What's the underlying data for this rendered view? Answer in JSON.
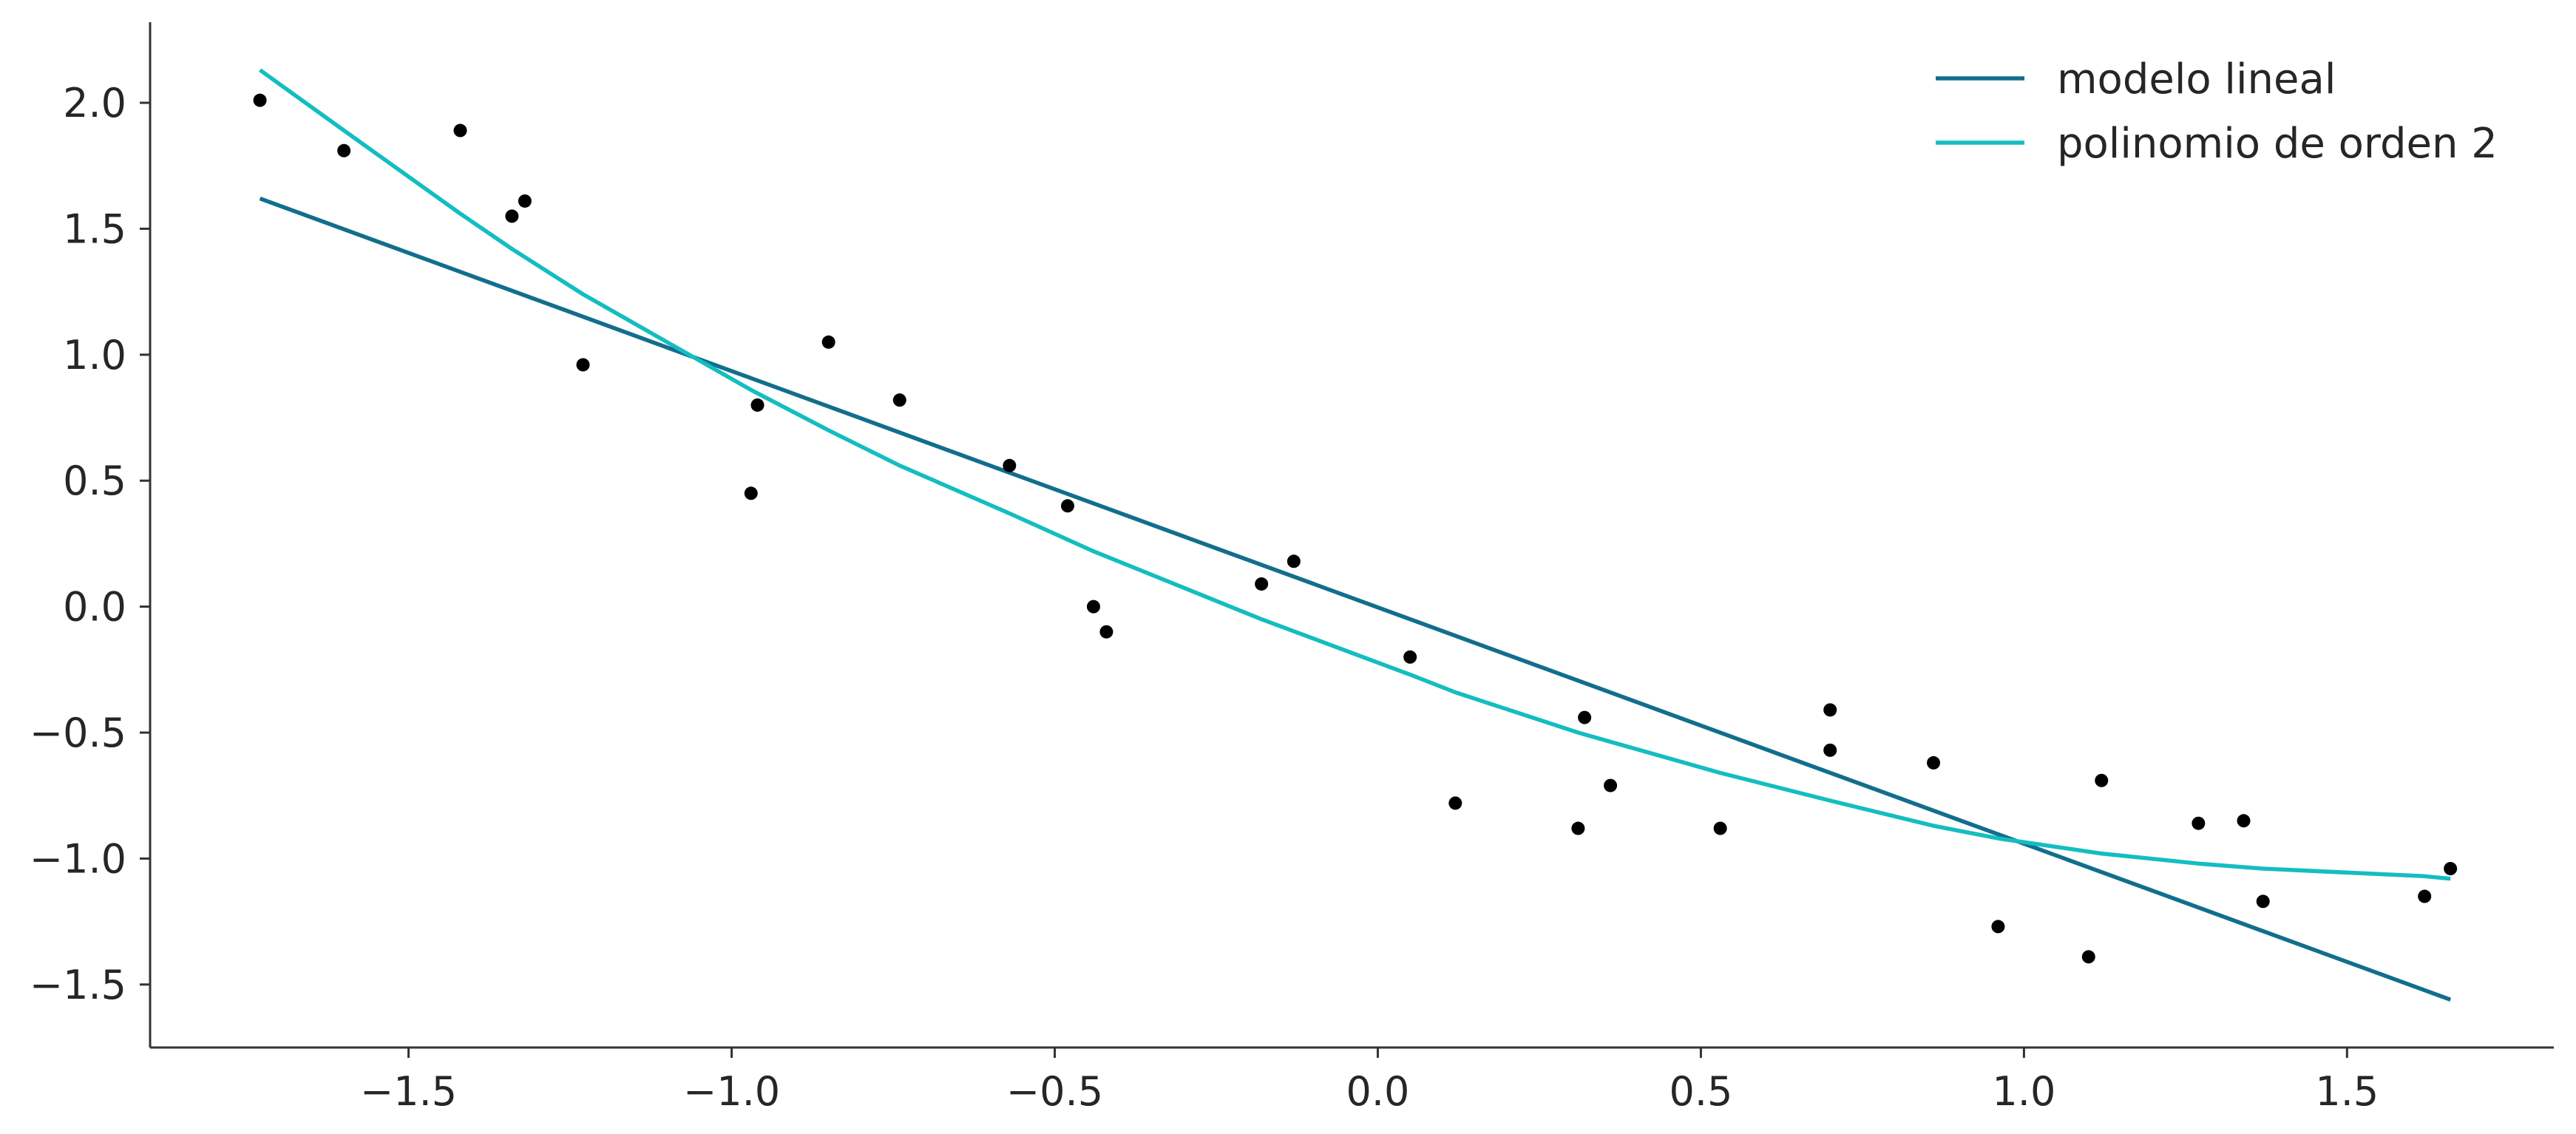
{
  "chart_data": {
    "type": "scatter",
    "title": "",
    "xlabel": "",
    "ylabel": "",
    "xlim": [
      -1.9,
      1.82
    ],
    "ylim": [
      -1.75,
      2.32
    ],
    "grid": false,
    "legend_position": "top-right",
    "x_ticks": [
      -1.5,
      -1.0,
      -0.5,
      0.0,
      0.5,
      1.0,
      1.5
    ],
    "y_ticks": [
      -1.5,
      -1.0,
      -0.5,
      0.0,
      0.5,
      1.0,
      1.5,
      2.0
    ],
    "x_tick_labels": [
      "−1.5",
      "−1.0",
      "−0.5",
      "0.0",
      "0.5",
      "1.0",
      "1.5"
    ],
    "y_tick_labels": [
      "−1.5",
      "−1.0",
      "−0.5",
      "0.0",
      "0.5",
      "1.0",
      "1.5",
      "2.0"
    ],
    "points": {
      "color": "#000000",
      "x": [
        -1.73,
        -1.6,
        -1.42,
        -1.34,
        -1.32,
        -1.23,
        -0.97,
        -0.96,
        -0.85,
        -0.74,
        -0.57,
        -0.48,
        -0.44,
        -0.42,
        -0.18,
        -0.13,
        0.05,
        0.12,
        0.31,
        0.32,
        0.36,
        0.53,
        0.7,
        0.7,
        0.86,
        0.96,
        1.1,
        1.12,
        1.27,
        1.34,
        1.37,
        1.62,
        1.66
      ],
      "y": [
        2.01,
        1.81,
        1.89,
        1.55,
        1.61,
        0.96,
        0.45,
        0.8,
        1.05,
        0.82,
        0.56,
        0.4,
        0.0,
        -0.1,
        0.09,
        0.18,
        -0.2,
        -0.78,
        -0.88,
        -0.44,
        -0.71,
        -0.88,
        -0.41,
        -0.57,
        -0.62,
        -1.27,
        -1.39,
        -0.69,
        -0.86,
        -0.85,
        -1.17,
        -1.15,
        -1.04
      ]
    },
    "series": [
      {
        "name": "modelo lineal",
        "color": "#126e8c",
        "x": [
          -1.73,
          1.66
        ],
        "y": [
          1.62,
          -1.56
        ]
      },
      {
        "name": "polinomio de orden 2",
        "color": "#14bdc0",
        "x": [
          -1.73,
          -1.6,
          -1.42,
          -1.34,
          -1.23,
          -0.97,
          -0.85,
          -0.74,
          -0.57,
          -0.44,
          -0.18,
          0.05,
          0.12,
          0.31,
          0.53,
          0.7,
          0.86,
          0.96,
          1.12,
          1.27,
          1.37,
          1.62,
          1.66
        ],
        "y": [
          2.13,
          1.89,
          1.56,
          1.42,
          1.24,
          0.86,
          0.7,
          0.56,
          0.37,
          0.22,
          -0.05,
          -0.27,
          -0.34,
          -0.5,
          -0.66,
          -0.77,
          -0.87,
          -0.92,
          -0.98,
          -1.02,
          -1.04,
          -1.07,
          -1.08
        ]
      }
    ]
  }
}
